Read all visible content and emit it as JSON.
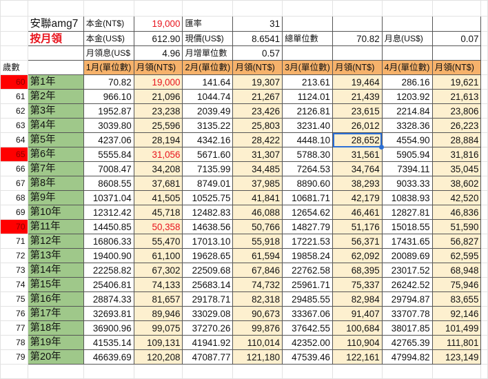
{
  "product": {
    "name": "安聯amg7",
    "payout_mode": "按月領"
  },
  "params": {
    "principal_ntd_label": "本金(NT$)",
    "principal_ntd_value": "19,000",
    "fx_label": "匯率",
    "fx_value": "31",
    "principal_usd_label": "本金(US$)",
    "principal_usd_value": "612.90",
    "nav_label": "現價(US$)",
    "nav_value": "8.6541",
    "total_units_label": "總單位數",
    "total_units_value": "70.82",
    "monthly_interest_label": "月息(US$)",
    "monthly_interest_value": "0.07",
    "monthly_payout_label": "月領息(US$",
    "monthly_payout_value": "4.96",
    "monthly_units_added_label": "月增單位數",
    "monthly_units_added_value": "0.57"
  },
  "table": {
    "age_header": "歲數",
    "headers": [
      "1月(單位數)",
      "月領(NT$)",
      "2月(單位數)",
      "月領(NT$)",
      "3月(單位數)",
      "月領(NT$)",
      "4月(單位數)",
      "月領(NT$)"
    ],
    "rows": [
      {
        "age": "60",
        "year": "第1年",
        "m1u": "70.82",
        "m1p": "19,000",
        "m2u": "141.64",
        "m2p": "19,307",
        "m3u": "213.61",
        "m3p": "19,464",
        "m4u": "286.16",
        "m4p": "19,621"
      },
      {
        "age": "61",
        "year": "第2年",
        "m1u": "966.10",
        "m1p": "21,096",
        "m2u": "1044.74",
        "m2p": "21,267",
        "m3u": "1124.01",
        "m3p": "21,439",
        "m4u": "1203.92",
        "m4p": "21,613"
      },
      {
        "age": "62",
        "year": "第3年",
        "m1u": "1952.87",
        "m1p": "23,238",
        "m2u": "2039.49",
        "m2p": "23,426",
        "m3u": "2126.81",
        "m3p": "23,615",
        "m4u": "2214.84",
        "m4p": "23,806"
      },
      {
        "age": "63",
        "year": "第4年",
        "m1u": "3039.80",
        "m1p": "25,596",
        "m2u": "3135.22",
        "m2p": "25,803",
        "m3u": "3231.40",
        "m3p": "26,012",
        "m4u": "3328.36",
        "m4p": "26,223"
      },
      {
        "age": "64",
        "year": "第5年",
        "m1u": "4237.06",
        "m1p": "28,194",
        "m2u": "4342.16",
        "m2p": "28,422",
        "m3u": "4448.10",
        "m3p": "28,652",
        "m4u": "4554.90",
        "m4p": "28,884"
      },
      {
        "age": "65",
        "year": "第6年",
        "m1u": "5555.84",
        "m1p": "31,056",
        "m2u": "5671.60",
        "m2p": "31,307",
        "m3u": "5788.30",
        "m3p": "31,561",
        "m4u": "5905.94",
        "m4p": "31,816"
      },
      {
        "age": "66",
        "year": "第7年",
        "m1u": "7008.47",
        "m1p": "34,208",
        "m2u": "7135.99",
        "m2p": "34,485",
        "m3u": "7264.53",
        "m3p": "34,764",
        "m4u": "7394.11",
        "m4p": "35,045"
      },
      {
        "age": "67",
        "year": "第8年",
        "m1u": "8608.55",
        "m1p": "37,681",
        "m2u": "8749.01",
        "m2p": "37,985",
        "m3u": "8890.60",
        "m3p": "38,293",
        "m4u": "9033.33",
        "m4p": "38,602"
      },
      {
        "age": "68",
        "year": "第9年",
        "m1u": "10371.04",
        "m1p": "41,505",
        "m2u": "10525.75",
        "m2p": "41,841",
        "m3u": "10681.71",
        "m3p": "42,179",
        "m4u": "10838.93",
        "m4p": "42,520"
      },
      {
        "age": "69",
        "year": "第10年",
        "m1u": "12312.42",
        "m1p": "45,718",
        "m2u": "12482.83",
        "m2p": "46,088",
        "m3u": "12654.62",
        "m3p": "46,461",
        "m4u": "12827.81",
        "m4p": "46,836"
      },
      {
        "age": "70",
        "year": "第11年",
        "m1u": "14450.85",
        "m1p": "50,358",
        "m2u": "14638.56",
        "m2p": "50,766",
        "m3u": "14827.79",
        "m3p": "51,176",
        "m4u": "15018.55",
        "m4p": "51,590"
      },
      {
        "age": "71",
        "year": "第12年",
        "m1u": "16806.33",
        "m1p": "55,470",
        "m2u": "17013.10",
        "m2p": "55,918",
        "m3u": "17221.53",
        "m3p": "56,371",
        "m4u": "17431.65",
        "m4p": "56,827"
      },
      {
        "age": "72",
        "year": "第13年",
        "m1u": "19400.90",
        "m1p": "61,100",
        "m2u": "19628.65",
        "m2p": "61,594",
        "m3u": "19858.24",
        "m3p": "62,092",
        "m4u": "20089.69",
        "m4p": "62,595"
      },
      {
        "age": "73",
        "year": "第14年",
        "m1u": "22258.82",
        "m1p": "67,302",
        "m2u": "22509.68",
        "m2p": "67,846",
        "m3u": "22762.58",
        "m3p": "68,395",
        "m4u": "23017.52",
        "m4p": "68,948"
      },
      {
        "age": "74",
        "year": "第15年",
        "m1u": "25406.81",
        "m1p": "74,133",
        "m2u": "25683.14",
        "m2p": "74,732",
        "m3u": "25961.71",
        "m3p": "75,337",
        "m4u": "26242.52",
        "m4p": "75,946"
      },
      {
        "age": "75",
        "year": "第16年",
        "m1u": "28874.33",
        "m1p": "81,657",
        "m2u": "29178.71",
        "m2p": "82,318",
        "m3u": "29485.55",
        "m3p": "82,984",
        "m4u": "29794.87",
        "m4p": "83,655"
      },
      {
        "age": "76",
        "year": "第17年",
        "m1u": "32693.81",
        "m1p": "89,946",
        "m2u": "33029.08",
        "m2p": "90,673",
        "m3u": "33367.06",
        "m3p": "91,407",
        "m4u": "33707.78",
        "m4p": "92,146"
      },
      {
        "age": "77",
        "year": "第18年",
        "m1u": "36900.96",
        "m1p": "99,075",
        "m2u": "37270.26",
        "m2p": "99,876",
        "m3u": "37642.55",
        "m3p": "100,684",
        "m4u": "38017.85",
        "m4p": "101,499"
      },
      {
        "age": "78",
        "year": "第19年",
        "m1u": "41535.14",
        "m1p": "109,131",
        "m2u": "41941.92",
        "m2p": "110,014",
        "m3u": "42352.00",
        "m3p": "110,904",
        "m4u": "42765.39",
        "m4p": "111,801"
      },
      {
        "age": "79",
        "year": "第20年",
        "m1u": "46639.69",
        "m1p": "120,208",
        "m2u": "47087.77",
        "m2p": "121,180",
        "m3u": "47539.46",
        "m3p": "122,161",
        "m4u": "47994.82",
        "m4p": "123,149"
      }
    ],
    "highlighted_ages": [
      "60",
      "65",
      "70"
    ],
    "highlighted_payouts": [
      "19,000",
      "31,056",
      "50,358"
    ],
    "selected_cell": "28,652"
  },
  "colors": {
    "header_orange": "#f6b26b",
    "year_green": "#9fc88a",
    "payout_cream": "#fdf0cf",
    "age_highlight_red": "#ff0000",
    "text_red": "#e8141d",
    "selection_blue": "#2b6fd6"
  }
}
